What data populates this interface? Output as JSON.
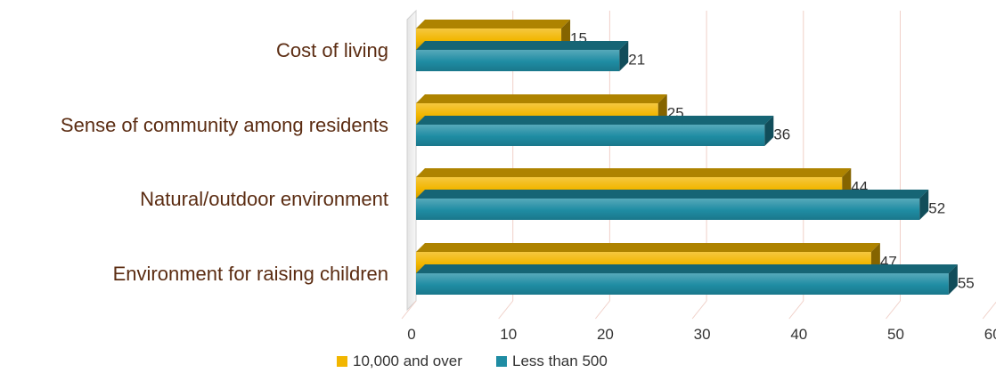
{
  "chart_data": {
    "type": "bar",
    "orientation": "horizontal",
    "three_d": true,
    "categories": [
      "Cost of living",
      "Sense of community among residents",
      "Natural/outdoor environment",
      "Environment for raising children"
    ],
    "series": [
      {
        "name": "10,000 and over",
        "values": [
          15,
          25,
          44,
          47
        ],
        "color": "#f2b600"
      },
      {
        "name": "Less than 500",
        "values": [
          21,
          36,
          52,
          55
        ],
        "color": "#1f8ca3"
      }
    ],
    "x_ticks": [
      "0",
      "10",
      "20",
      "30",
      "40",
      "50",
      "60"
    ],
    "xlim": [
      0,
      60
    ],
    "grid": true,
    "legend": "bottom",
    "title": "",
    "xlabel": "",
    "ylabel": ""
  }
}
